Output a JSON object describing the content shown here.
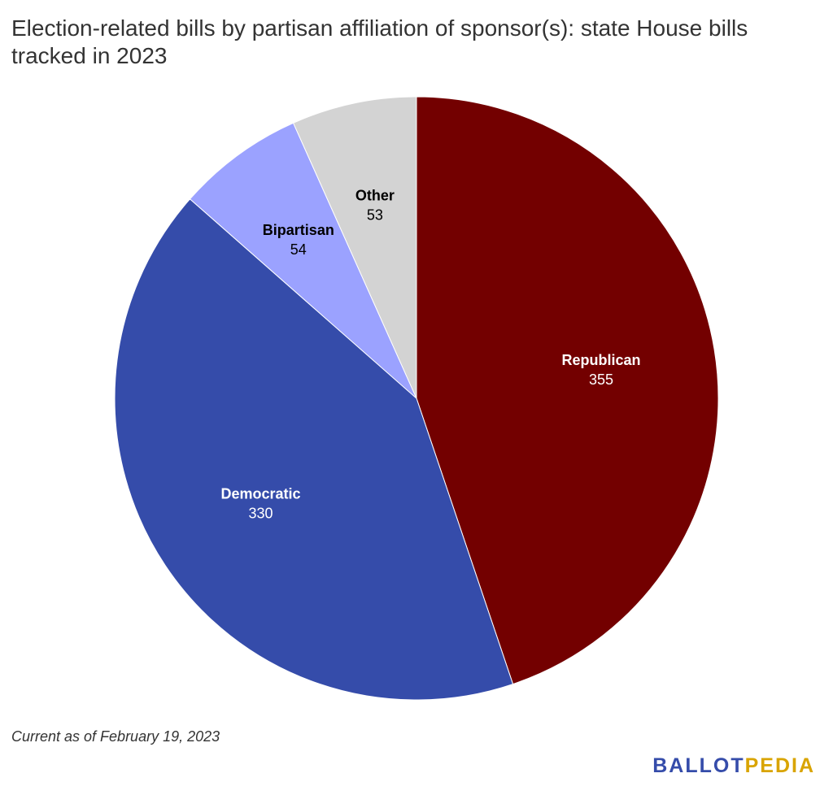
{
  "chart_data": {
    "type": "pie",
    "title": "Election-related bills by partisan affiliation of sponsor(s): state House bills tracked in 2023",
    "slices": [
      {
        "name": "Republican",
        "value": 355,
        "color": "#730000",
        "label_color": "#ffffff"
      },
      {
        "name": "Democratic",
        "value": 330,
        "color": "#354CAA",
        "label_color": "#ffffff"
      },
      {
        "name": "Bipartisan",
        "value": 54,
        "color": "#9BA2FF",
        "label_color": "#000000"
      },
      {
        "name": "Other",
        "value": 53,
        "color": "#D3D3D3",
        "label_color": "#000000"
      }
    ],
    "start_angle": "12 o'clock",
    "direction": "clockwise",
    "legend": "none"
  },
  "footnote": "Current as of February 19, 2023",
  "logo": {
    "part1": "BALLOT",
    "part2": "PEDIA",
    "color1": "#354CAA",
    "color2": "#D9A400"
  }
}
